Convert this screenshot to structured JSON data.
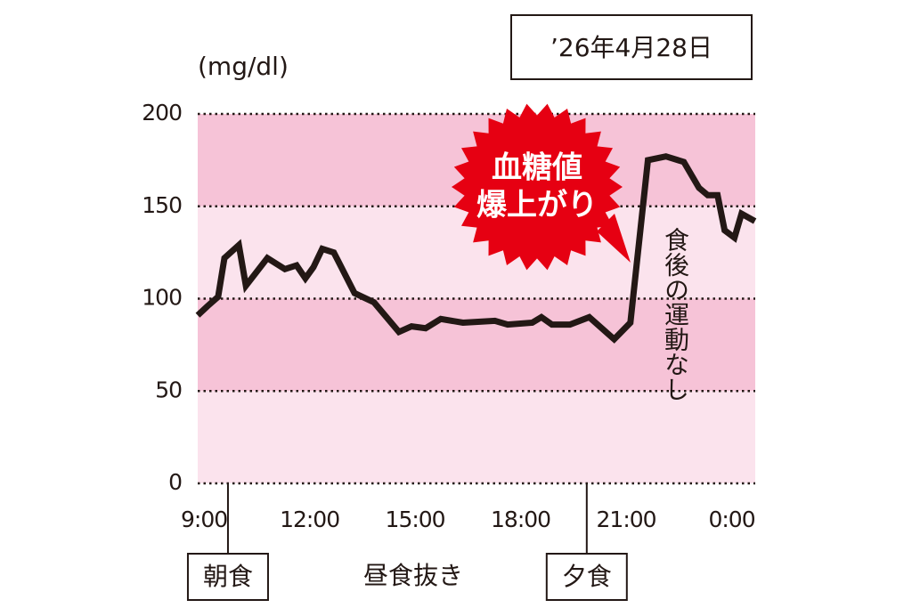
{
  "chart_data": {
    "type": "line",
    "y_unit": "(mg/dl)",
    "date": "’26年4月28日",
    "callout": [
      "血糖値",
      "爆上がり"
    ],
    "annotation": "食後の運動なし",
    "lunch_note": "昼食抜き",
    "events": [
      {
        "label": "朝食",
        "x": 9.68
      },
      {
        "label": "夕食",
        "x": 19.88
      }
    ],
    "x": [
      8.82,
      9.1,
      9.4,
      9.58,
      9.99,
      10.19,
      10.8,
      11.3,
      11.63,
      11.88,
      12.11,
      12.36,
      12.69,
      13.28,
      13.83,
      14.54,
      14.9,
      15.3,
      15.73,
      16.36,
      17.27,
      17.63,
      18.33,
      18.59,
      18.89,
      19.4,
      19.95,
      20.66,
      21.12,
      21.62,
      22.13,
      22.64,
      23.07,
      23.32,
      23.6,
      23.8,
      24.08,
      24.28,
      24.66
    ],
    "values": [
      91,
      96,
      101,
      122,
      129,
      107,
      122,
      116,
      118,
      111,
      117,
      127,
      125,
      103,
      98,
      82,
      85,
      84,
      89,
      87,
      88,
      86,
      87,
      90,
      86,
      86,
      90,
      78,
      87,
      175,
      177,
      174,
      160,
      156,
      156,
      137,
      133,
      146,
      142
    ],
    "color": "#231815",
    "xlim": [
      8.82,
      24.67
    ],
    "xticks": [
      {
        "value": 9,
        "label": "9:00"
      },
      {
        "value": 12,
        "label": "12:00"
      },
      {
        "value": 15,
        "label": "15:00"
      },
      {
        "value": 18,
        "label": "18:00"
      },
      {
        "value": 21,
        "label": "21:00"
      },
      {
        "value": 24,
        "label": "0:00"
      }
    ],
    "ylim": [
      0,
      200
    ],
    "yticks": [
      0,
      50,
      100,
      150,
      200
    ],
    "band_colors": [
      "#fbe3ed",
      "#f6c3d7"
    ],
    "grid": true
  }
}
